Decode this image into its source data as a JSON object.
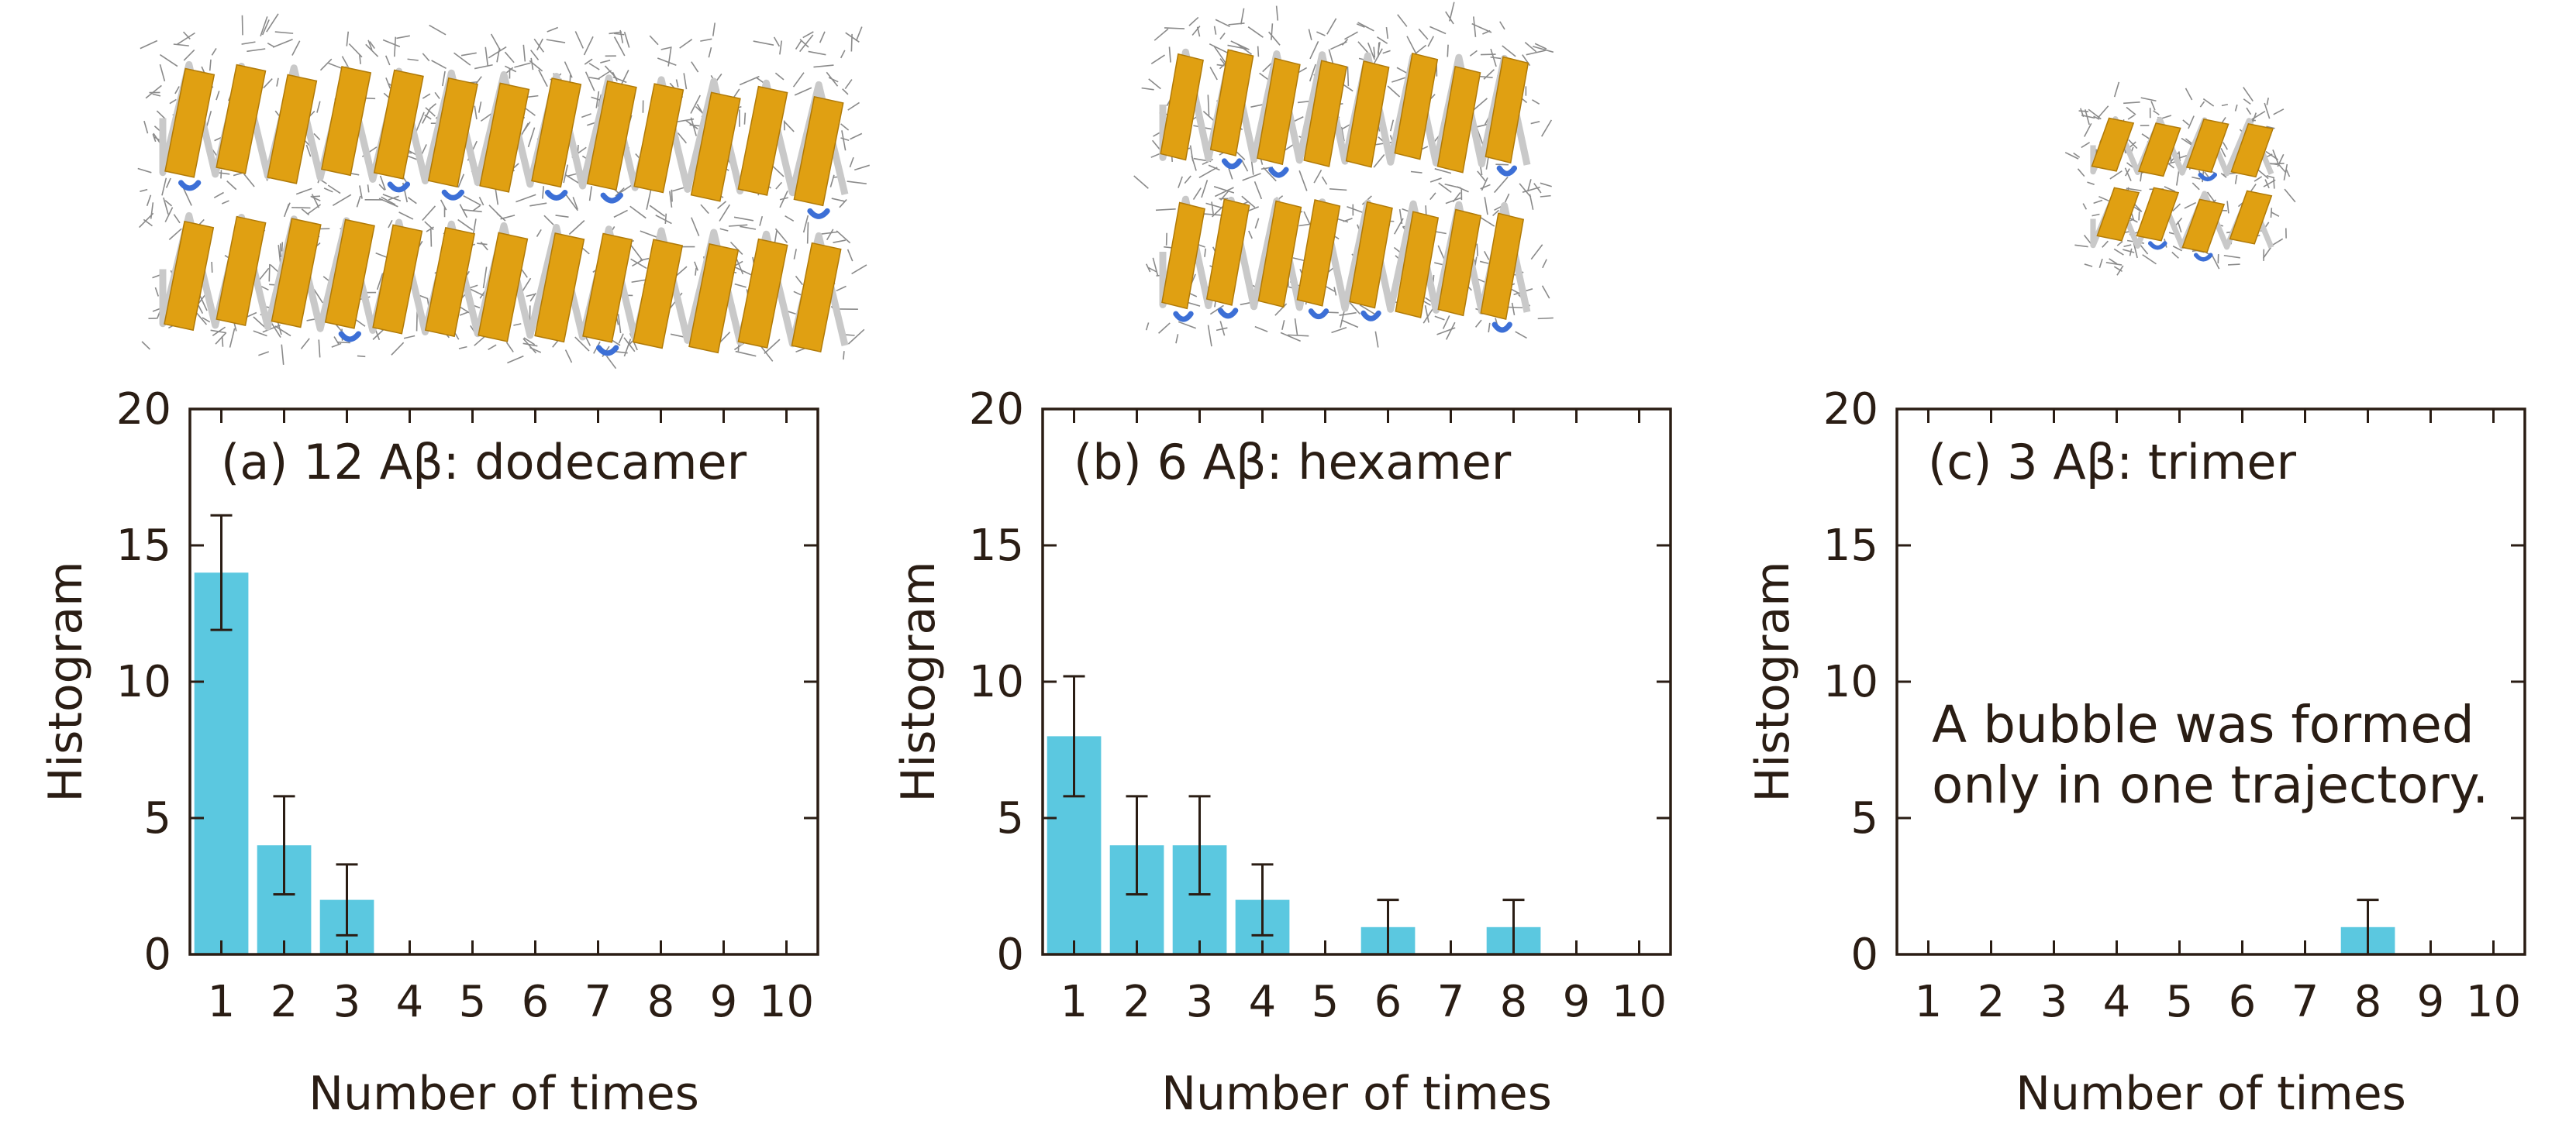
{
  "colors": {
    "bar": "#5bc8e0",
    "axis": "#2a1d14",
    "ribbon_strand": "#e0a012",
    "ribbon_coil": "#c9c9c9",
    "ribbon_turn": "#3c6fd6",
    "sidechain": "#8a8a8a"
  },
  "molecules": [
    {
      "name": "dodecamer-structure",
      "depiction": "protein-ribbon-structure"
    },
    {
      "name": "hexamer-structure",
      "depiction": "protein-ribbon-structure"
    },
    {
      "name": "trimer-structure",
      "depiction": "protein-ribbon-structure"
    }
  ],
  "chart_data": [
    {
      "type": "bar",
      "title": "(a) 12 Aβ: dodecamer",
      "xlabel": "Number of times",
      "ylabel": "Histogram",
      "categories": [
        "1",
        "2",
        "3",
        "4",
        "5",
        "6",
        "7",
        "8",
        "9",
        "10"
      ],
      "values": [
        14,
        4,
        2,
        0,
        0,
        0,
        0,
        0,
        0,
        0
      ],
      "errors": [
        2.1,
        1.8,
        1.3,
        0,
        0,
        0,
        0,
        0,
        0,
        0
      ],
      "ylim": [
        0,
        20
      ],
      "yticks": [
        "0",
        "5",
        "10",
        "15",
        "20"
      ],
      "annotation": []
    },
    {
      "type": "bar",
      "title": "(b) 6 Aβ: hexamer",
      "xlabel": "Number of times",
      "ylabel": "Histogram",
      "categories": [
        "1",
        "2",
        "3",
        "4",
        "5",
        "6",
        "7",
        "8",
        "9",
        "10"
      ],
      "values": [
        8,
        4,
        4,
        2,
        0,
        1,
        0,
        1,
        0,
        0
      ],
      "errors": [
        2.2,
        1.8,
        1.8,
        1.3,
        0,
        1,
        0,
        1,
        0,
        0
      ],
      "ylim": [
        0,
        20
      ],
      "yticks": [
        "0",
        "5",
        "10",
        "15",
        "20"
      ],
      "annotation": []
    },
    {
      "type": "bar",
      "title": "(c) 3 Aβ: trimer",
      "xlabel": "Number of times",
      "ylabel": "Histogram",
      "categories": [
        "1",
        "2",
        "3",
        "4",
        "5",
        "6",
        "7",
        "8",
        "9",
        "10"
      ],
      "values": [
        0,
        0,
        0,
        0,
        0,
        0,
        0,
        1,
        0,
        0
      ],
      "errors": [
        0,
        0,
        0,
        0,
        0,
        0,
        0,
        1,
        0,
        0
      ],
      "ylim": [
        0,
        20
      ],
      "yticks": [
        "0",
        "5",
        "10",
        "15",
        "20"
      ],
      "annotation": [
        "A bubble was formed",
        "only in one trajectory."
      ]
    }
  ]
}
